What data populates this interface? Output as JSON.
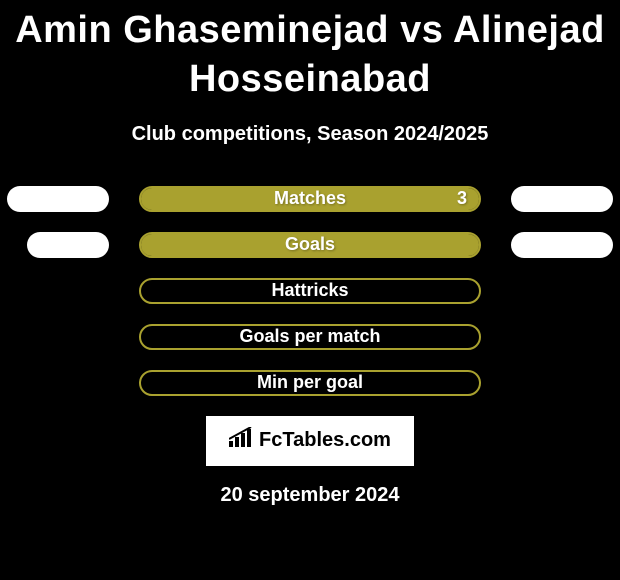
{
  "colors": {
    "background": "#000000",
    "title_color": "#ffffff",
    "subtitle_color": "#ffffff",
    "side_pill_bg": "#ffffff",
    "center_pill_border": "#a9a12f",
    "center_pill_bg_empty": "transparent",
    "center_pill_bg_filled": "#a9a12f",
    "center_label_color": "#ffffff",
    "logo_bg": "#ffffff",
    "logo_text_color": "#000000",
    "date_color": "#ffffff"
  },
  "title": "Amin Ghaseminejad vs Alinejad Hosseinabad",
  "title_fontsize": 38,
  "subtitle": "Club competitions, Season 2024/2025",
  "subtitle_fontsize": 20,
  "logo_text": "FcTables.com",
  "date": "20 september 2024",
  "row_gap": 20,
  "center_pill_width": 342,
  "side_pill_width": 102,
  "pill_height": 26,
  "stats": [
    {
      "label": "Matches",
      "left_value": "",
      "right_value": "3",
      "filled": true,
      "fill_percent": 100,
      "left_side_pill_width": 102,
      "right_side_pill_width": 102
    },
    {
      "label": "Goals",
      "left_value": "",
      "right_value": "",
      "filled": true,
      "fill_percent": 100,
      "left_side_pill_width": 82,
      "right_side_pill_width": 102
    },
    {
      "label": "Hattricks",
      "left_value": "",
      "right_value": "",
      "filled": false,
      "fill_percent": 0,
      "left_side_pill_width": 0,
      "right_side_pill_width": 0
    },
    {
      "label": "Goals per match",
      "left_value": "",
      "right_value": "",
      "filled": false,
      "fill_percent": 0,
      "left_side_pill_width": 0,
      "right_side_pill_width": 0
    },
    {
      "label": "Min per goal",
      "left_value": "",
      "right_value": "",
      "filled": false,
      "fill_percent": 0,
      "left_side_pill_width": 0,
      "right_side_pill_width": 0
    }
  ]
}
